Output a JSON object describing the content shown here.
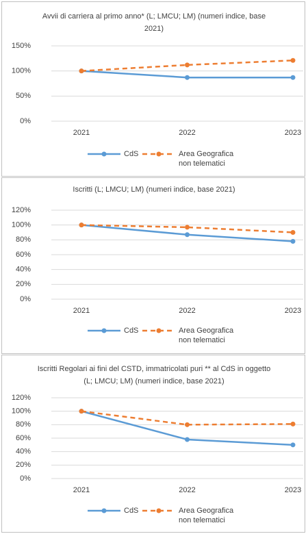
{
  "chart_data": [
    {
      "type": "line",
      "title": "Avvii di carriera al primo anno* (L; LMCU; LM) (numeri indice, base 2021)",
      "categories": [
        "2021",
        "2022",
        "2023"
      ],
      "series": [
        {
          "name": "CdS",
          "color": "#5b9bd5",
          "values": [
            100,
            87,
            87
          ]
        },
        {
          "name": "Area Geografica non telematici",
          "color": "#ed7d31",
          "dashed": true,
          "values": [
            100,
            112,
            121
          ]
        }
      ],
      "ylim": [
        0,
        150
      ],
      "yticks": [
        {
          "value": 0,
          "label": "0%"
        },
        {
          "value": 50,
          "label": "50%"
        },
        {
          "value": 100,
          "label": "100%"
        },
        {
          "value": 150,
          "label": "150%"
        }
      ],
      "grid": true,
      "legend": "bottom"
    },
    {
      "type": "line",
      "title": "Iscritti (L; LMCU; LM) (numeri indice, base 2021)",
      "categories": [
        "2021",
        "2022",
        "2023"
      ],
      "series": [
        {
          "name": "CdS",
          "color": "#5b9bd5",
          "values": [
            100,
            87,
            78
          ]
        },
        {
          "name": "Area Geografica non telematici",
          "color": "#ed7d31",
          "dashed": true,
          "values": [
            100,
            97,
            90
          ]
        }
      ],
      "ylim": [
        0,
        120
      ],
      "yticks": [
        {
          "value": 0,
          "label": "0%"
        },
        {
          "value": 20,
          "label": "20%"
        },
        {
          "value": 40,
          "label": "40%"
        },
        {
          "value": 60,
          "label": "60%"
        },
        {
          "value": 80,
          "label": "80%"
        },
        {
          "value": 100,
          "label": "100%"
        },
        {
          "value": 120,
          "label": "120%"
        }
      ],
      "grid": true,
      "legend": "bottom"
    },
    {
      "type": "line",
      "title": "Iscritti Regolari ai fini del CSTD, immatricolati puri ** al CdS in oggetto (L; LMCU; LM) (numeri indice, base 2021)",
      "categories": [
        "2021",
        "2022",
        "2023"
      ],
      "series": [
        {
          "name": "CdS",
          "color": "#5b9bd5",
          "values": [
            100,
            58,
            50
          ]
        },
        {
          "name": "Area Geografica non telematici",
          "color": "#ed7d31",
          "dashed": true,
          "values": [
            100,
            80,
            81
          ]
        }
      ],
      "ylim": [
        0,
        120
      ],
      "yticks": [
        {
          "value": 0,
          "label": "0%"
        },
        {
          "value": 20,
          "label": "20%"
        },
        {
          "value": 40,
          "label": "40%"
        },
        {
          "value": 60,
          "label": "60%"
        },
        {
          "value": 80,
          "label": "80%"
        },
        {
          "value": 100,
          "label": "100%"
        },
        {
          "value": 120,
          "label": "120%"
        }
      ],
      "grid": true,
      "legend": "bottom"
    }
  ]
}
